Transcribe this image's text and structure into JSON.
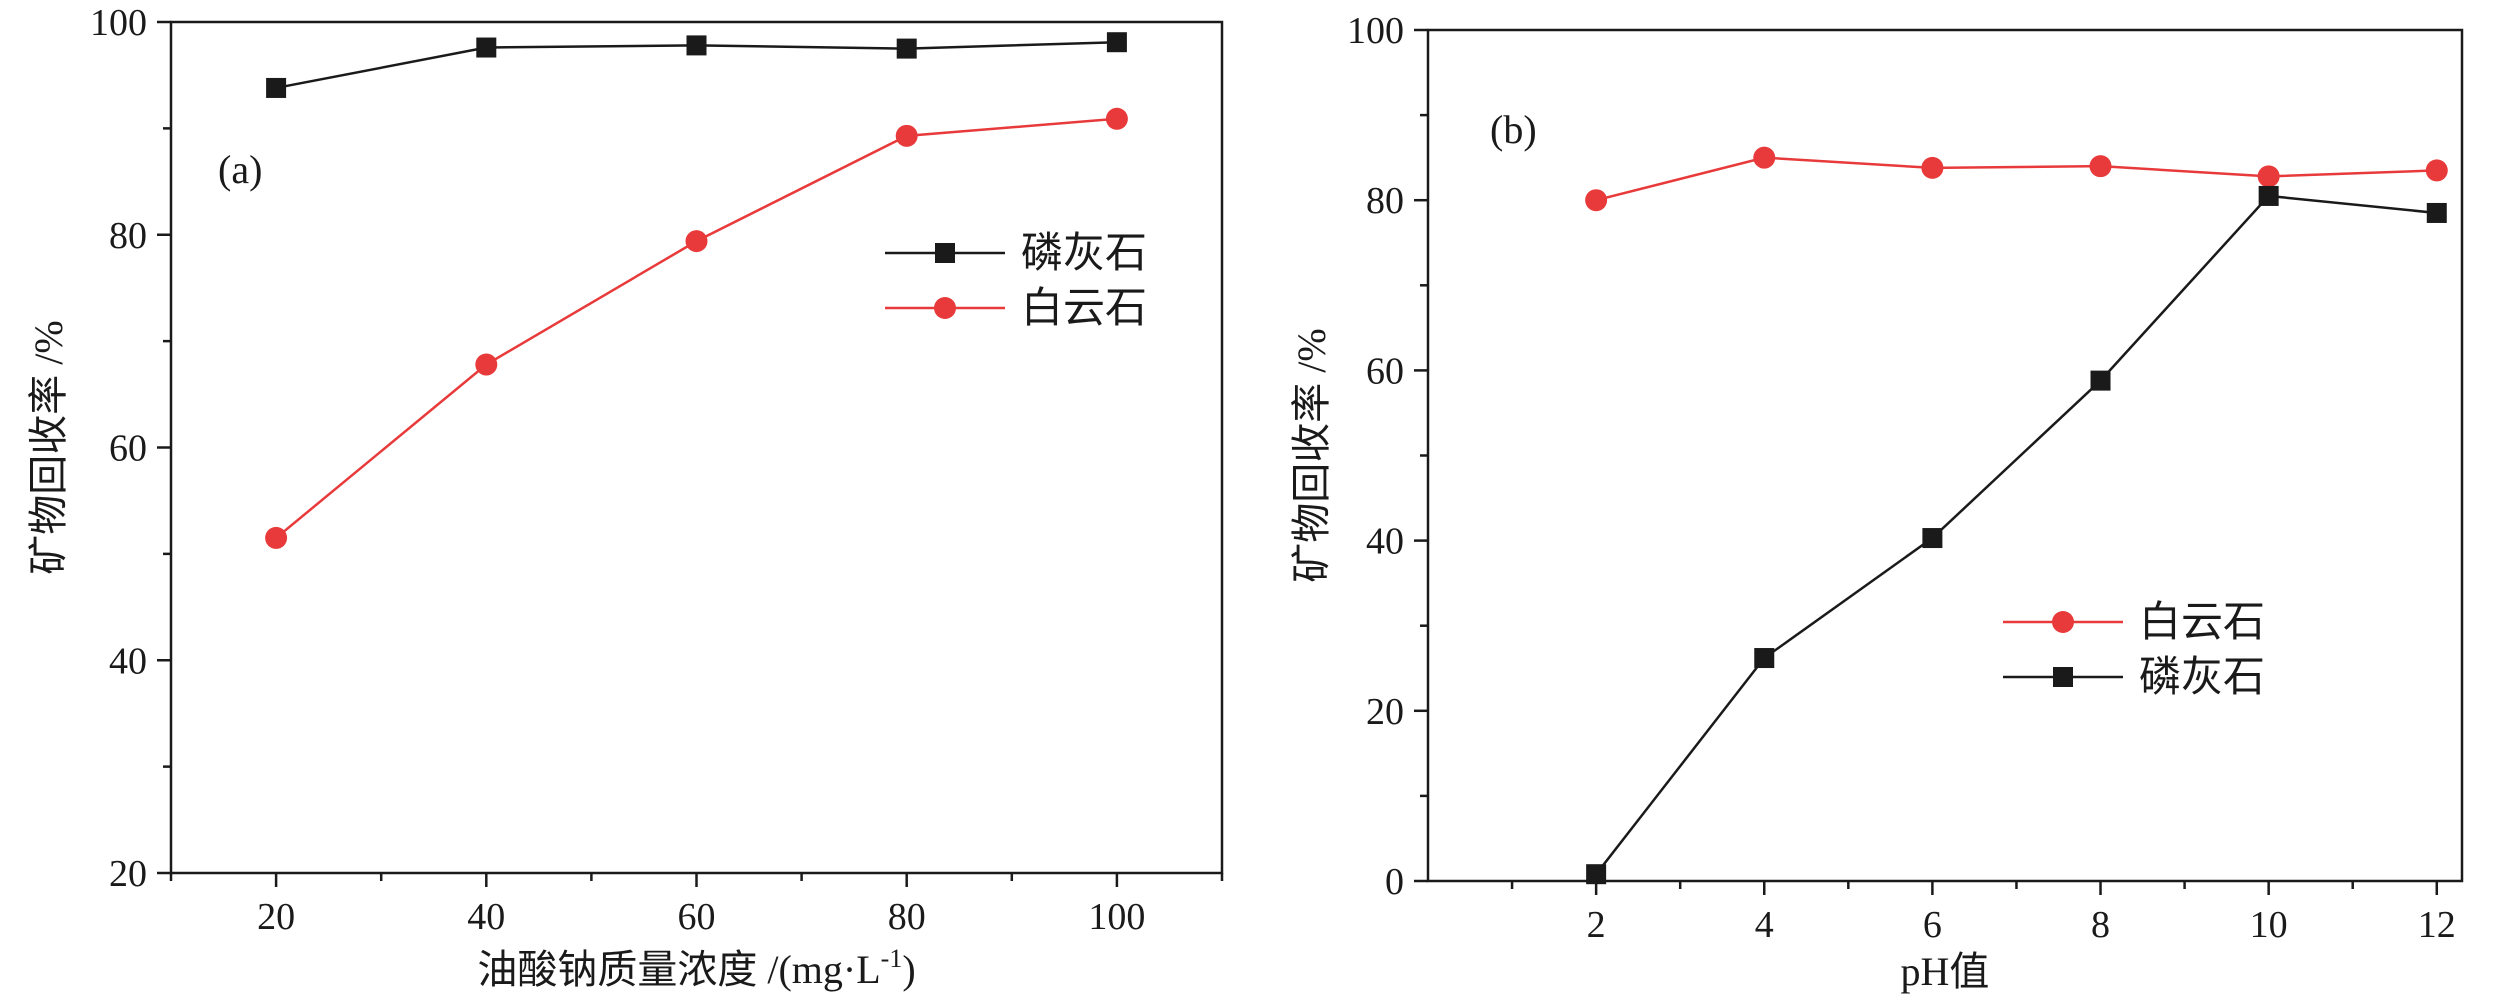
{
  "chart_data": [
    {
      "type": "line",
      "panel_label": "(a)",
      "xlabel": "油酸钠质量浓度 /(mg·L",
      "xlabel_sup": "-1",
      "xlabel_tail": ")",
      "ylabel": "矿物回收率 /%",
      "xlim": [
        10,
        110
      ],
      "ylim": [
        20,
        100
      ],
      "x_ticks": [
        20,
        40,
        60,
        80,
        100
      ],
      "y_ticks": [
        20,
        40,
        60,
        80,
        100
      ],
      "grid": false,
      "legend_position": "middle-right",
      "series": [
        {
          "name": "磷灰石",
          "marker": "square",
          "color": "#1a1a1a",
          "x": [
            20,
            40,
            60,
            80,
            100
          ],
          "y": [
            93.8,
            97.6,
            97.8,
            97.5,
            98.1
          ]
        },
        {
          "name": "白云石",
          "marker": "circle",
          "color": "#e83a3a",
          "x": [
            20,
            40,
            60,
            80,
            100
          ],
          "y": [
            51.5,
            67.8,
            79.4,
            89.3,
            90.9
          ]
        }
      ],
      "legend_order": [
        0,
        1
      ]
    },
    {
      "type": "line",
      "panel_label": "(b)",
      "xlabel": "pH值",
      "xlabel_sup": "",
      "xlabel_tail": "",
      "ylabel": "矿物回收率 /%",
      "xlim": [
        0,
        12.3
      ],
      "ylim": [
        0,
        100
      ],
      "x_ticks": [
        2,
        4,
        6,
        8,
        10,
        12
      ],
      "y_ticks": [
        0,
        20,
        40,
        60,
        80,
        100
      ],
      "grid": false,
      "legend_position": "lower-right",
      "series": [
        {
          "name": "白云石",
          "marker": "circle",
          "color": "#e83a3a",
          "x": [
            2,
            4,
            6,
            8,
            10,
            12
          ],
          "y": [
            80.0,
            85.0,
            83.8,
            84.0,
            82.8,
            83.5
          ]
        },
        {
          "name": "磷灰石",
          "marker": "square",
          "color": "#1a1a1a",
          "x": [
            2,
            4,
            6,
            8,
            10,
            12
          ],
          "y": [
            0.8,
            26.2,
            40.3,
            58.8,
            80.5,
            78.5
          ]
        }
      ],
      "legend_order": [
        0,
        1
      ]
    }
  ]
}
